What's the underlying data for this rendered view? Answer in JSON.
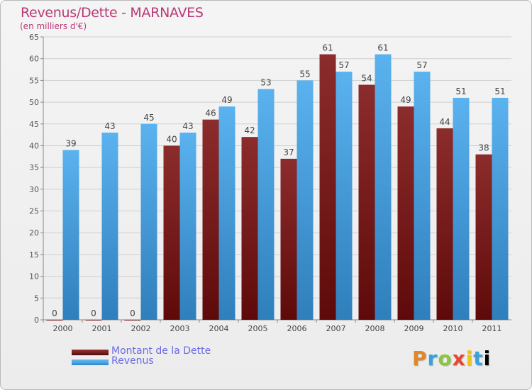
{
  "chart_data": {
    "type": "bar",
    "title": "Revenus/Dette - MARNAVES",
    "subtitle": "(en milliers d'€)",
    "categories": [
      "2000",
      "2001",
      "2002",
      "2003",
      "2004",
      "2005",
      "2006",
      "2007",
      "2008",
      "2009",
      "2010",
      "2011"
    ],
    "series": [
      {
        "name": "Montant de la Dette",
        "color": "#7a2020",
        "values": [
          0,
          0,
          0,
          40,
          46,
          42,
          37,
          61,
          54,
          49,
          44,
          38
        ]
      },
      {
        "name": "Revenus",
        "color": "#4aa6e6",
        "values": [
          39,
          43,
          45,
          43,
          49,
          53,
          55,
          57,
          61,
          57,
          51,
          51
        ]
      }
    ],
    "ylim": [
      0,
      65
    ],
    "yticks": [
      0,
      5,
      10,
      15,
      20,
      25,
      30,
      35,
      40,
      45,
      50,
      55,
      60,
      65
    ],
    "grid": true,
    "legend": "bottom-left"
  },
  "logo_text": "Proxiti",
  "colors": {
    "title": "#b83a78",
    "legend_text": "#6a6ae8",
    "grid": "#d0d0d0"
  }
}
